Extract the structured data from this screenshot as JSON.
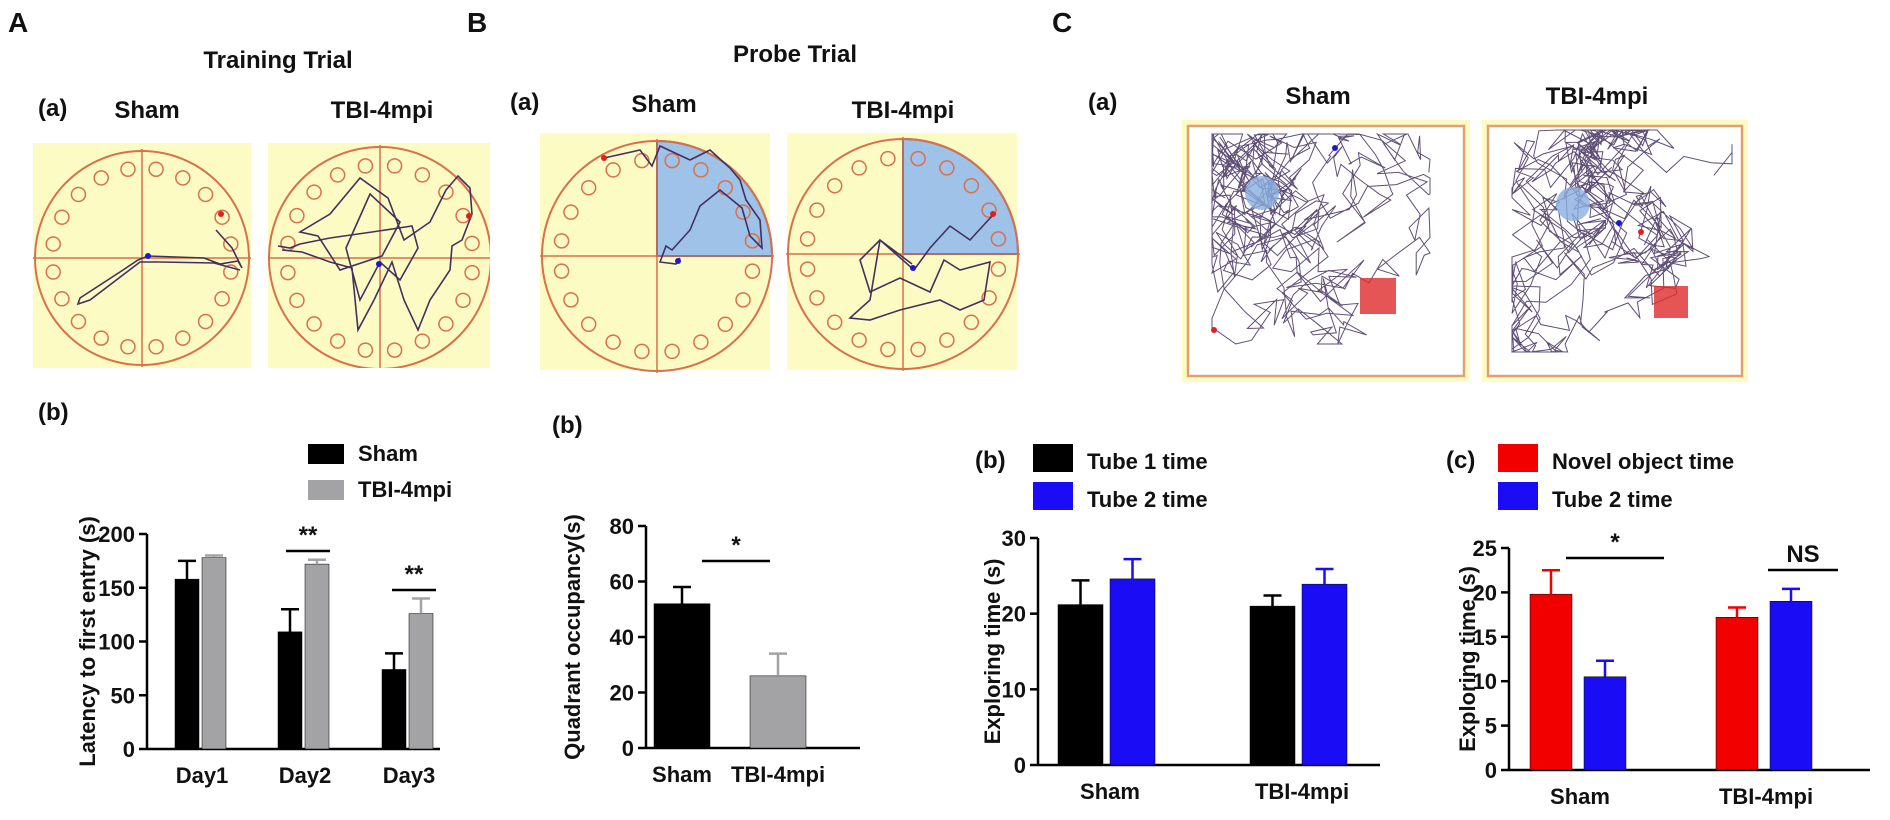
{
  "panels": {
    "A": {
      "letter": "A",
      "title": "Training Trial",
      "sub_a": "(a)",
      "sub_b": "(b)",
      "maze_labels": [
        "Sham",
        "TBI-4mpi"
      ]
    },
    "B": {
      "letter": "B",
      "title": "Probe Trial",
      "sub_a": "(a)",
      "sub_b": "(b)",
      "maze_labels": [
        "Sham",
        "TBI-4mpi"
      ]
    },
    "C": {
      "letter": "C",
      "sub_a": "(a)",
      "sub_b": "(b)",
      "sub_c": "(c)",
      "field_labels": [
        "Sham",
        "TBI-4mpi"
      ]
    }
  },
  "colors": {
    "sham": "#000000",
    "tbi": "#a3a3a6",
    "tube2": "#1a0df5",
    "novel": "#f20000",
    "arena_bg": "#fdfbc4",
    "maze_line": "#d9704b",
    "path": "#43305e",
    "quadrant": "#9ec2e8"
  },
  "chart_data": [
    {
      "id": "A_b",
      "type": "bar",
      "title": "",
      "xlabel": "",
      "ylabel": "Latency to first entry (s)",
      "ylim": [
        0,
        200
      ],
      "yticks": [
        "0",
        "50",
        "100",
        "150",
        "200"
      ],
      "categories": [
        "Day1",
        "Day2",
        "Day3"
      ],
      "series": [
        {
          "name": "Sham",
          "values": [
            158,
            109,
            74
          ],
          "errors": [
            17,
            21,
            15
          ]
        },
        {
          "name": "TBI-4mpi",
          "values": [
            178,
            172,
            126
          ],
          "errors": [
            2,
            4,
            14
          ]
        }
      ],
      "significance": [
        {
          "category": "Day2",
          "label": "**"
        },
        {
          "category": "Day3",
          "label": "**"
        }
      ],
      "legend": "top-right"
    },
    {
      "id": "B_b",
      "type": "bar",
      "title": "",
      "xlabel": "",
      "ylabel": "Quadrant occupancy(s)",
      "ylim": [
        0,
        80
      ],
      "yticks": [
        "0",
        "20",
        "40",
        "60",
        "80"
      ],
      "categories": [
        "Sham",
        "TBI-4mpi"
      ],
      "values": [
        52,
        26
      ],
      "errors": [
        6,
        8
      ],
      "significance": [
        {
          "label": "*"
        }
      ]
    },
    {
      "id": "C_b",
      "type": "bar",
      "title": "",
      "xlabel": "",
      "ylabel": "Exploring time (s)",
      "ylim": [
        0,
        30
      ],
      "yticks": [
        "0",
        "10",
        "20",
        "30"
      ],
      "categories": [
        "Sham",
        "TBI-4mpi"
      ],
      "series": [
        {
          "name": "Tube 1 time",
          "values": [
            21.2,
            21.0
          ],
          "errors": [
            3.2,
            1.4
          ]
        },
        {
          "name": "Tube 2 time",
          "values": [
            24.6,
            23.9
          ],
          "errors": [
            2.6,
            2.0
          ]
        }
      ],
      "legend": "top-left"
    },
    {
      "id": "C_c",
      "type": "bar",
      "title": "",
      "xlabel": "",
      "ylabel": "Exploring time (s)",
      "ylim": [
        0,
        25
      ],
      "yticks": [
        "0",
        "5",
        "10",
        "15",
        "20",
        "25"
      ],
      "categories": [
        "Sham",
        "TBI-4mpi"
      ],
      "series": [
        {
          "name": "Novel object time",
          "values": [
            19.8,
            17.2
          ],
          "errors": [
            2.7,
            1.1
          ]
        },
        {
          "name": "Tube 2 time",
          "values": [
            10.5,
            19.0
          ],
          "errors": [
            1.8,
            1.4
          ]
        }
      ],
      "significance": [
        {
          "category": "Sham",
          "label": "*"
        },
        {
          "category": "TBI-4mpi",
          "label": "NS"
        }
      ],
      "legend": "top-left"
    }
  ]
}
